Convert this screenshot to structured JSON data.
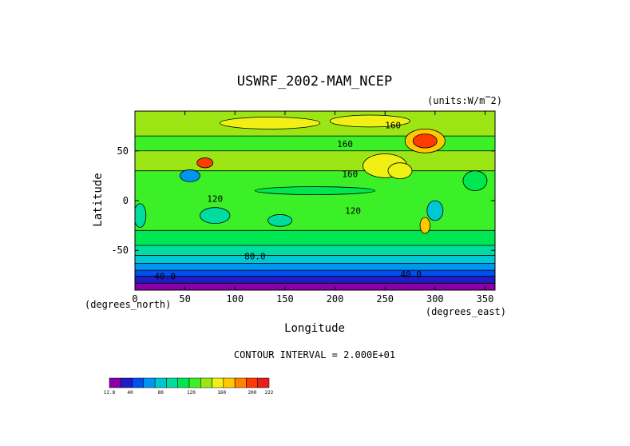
{
  "chart_data": {
    "type": "heatmap",
    "title": "USWRF_2002-MAM_NCEP",
    "units": "(units:W/m^2)",
    "xlabel": "Longitude",
    "ylabel": "Latitude",
    "x_unit_note": "(degrees_east)",
    "y_unit_note": "(degrees_north)",
    "xlim": [
      0,
      360
    ],
    "ylim": [
      -90,
      90
    ],
    "x_ticks": [
      0,
      50,
      100,
      150,
      200,
      250,
      300,
      350
    ],
    "y_ticks": [
      -50,
      0,
      50
    ],
    "contour_interval_text": "CONTOUR INTERVAL = 2.000E+01",
    "contour_labels": [
      {
        "text": "160",
        "lon": 258,
        "lat": 76
      },
      {
        "text": "160",
        "lon": 210,
        "lat": 57
      },
      {
        "text": "160",
        "lon": 215,
        "lat": 27
      },
      {
        "text": "120",
        "lon": 80,
        "lat": 2
      },
      {
        "text": "120",
        "lon": 218,
        "lat": -10
      },
      {
        "text": "80.0",
        "lon": 120,
        "lat": -56
      },
      {
        "text": "40.0",
        "lon": 30,
        "lat": -76
      },
      {
        "text": "40.0",
        "lon": 276,
        "lat": -74
      }
    ],
    "colorbar": {
      "tick_labels": [
        "12.8",
        "40",
        "80",
        "120",
        "160",
        "200",
        "222"
      ],
      "tick_values": [
        12.8,
        40,
        80,
        120,
        160,
        200,
        222
      ],
      "colors": [
        "#8a00a6",
        "#1e1ec8",
        "#0050f0",
        "#0096f0",
        "#00c8d2",
        "#00dca0",
        "#00e650",
        "#3cf028",
        "#9be614",
        "#f0f014",
        "#ffc800",
        "#ff8200",
        "#ff3c00",
        "#e61e1e"
      ]
    },
    "bands": [
      {
        "lat_from": -90,
        "lat_to": -83,
        "color": "#8a00a6",
        "value": 25
      },
      {
        "lat_from": -83,
        "lat_to": -76,
        "color": "#1e1ec8",
        "value": 35
      },
      {
        "lat_from": -76,
        "lat_to": -70,
        "color": "#0050f0",
        "value": 45
      },
      {
        "lat_from": -70,
        "lat_to": -63,
        "color": "#0096f0",
        "value": 55
      },
      {
        "lat_from": -63,
        "lat_to": -55,
        "color": "#00c8d2",
        "value": 70
      },
      {
        "lat_from": -55,
        "lat_to": -45,
        "color": "#00dca0",
        "value": 85
      },
      {
        "lat_from": -45,
        "lat_to": -30,
        "color": "#00e650",
        "value": 100
      },
      {
        "lat_from": -30,
        "lat_to": 30,
        "color": "#3cf028",
        "value": 115
      },
      {
        "lat_from": 30,
        "lat_to": 50,
        "color": "#9be614",
        "value": 130
      },
      {
        "lat_from": 50,
        "lat_to": 65,
        "color": "#3cf028",
        "value": 120
      },
      {
        "lat_from": 65,
        "lat_to": 90,
        "color": "#9be614",
        "value": 135
      }
    ],
    "patches": [
      {
        "lon": 250,
        "lat": 35,
        "rlon": 22,
        "rlat": 12,
        "color": "#f0f014",
        "value": 150
      },
      {
        "lon": 265,
        "lat": 30,
        "rlon": 12,
        "rlat": 8,
        "color": "#f0f014",
        "value": 150
      },
      {
        "lon": 235,
        "lat": 80,
        "rlon": 40,
        "rlat": 6,
        "color": "#f0f014",
        "value": 155
      },
      {
        "lon": 135,
        "lat": 78,
        "rlon": 50,
        "rlat": 6,
        "color": "#f0f014",
        "value": 155
      },
      {
        "lon": 290,
        "lat": 60,
        "rlon": 20,
        "rlat": 12,
        "color": "#ffc800",
        "value": 175
      },
      {
        "lon": 290,
        "lat": 60,
        "rlon": 12,
        "rlat": 7,
        "color": "#ff3c00",
        "value": 205
      },
      {
        "lon": 70,
        "lat": 38,
        "rlon": 8,
        "rlat": 5,
        "color": "#ff3c00",
        "value": 200
      },
      {
        "lon": 55,
        "lat": 25,
        "rlon": 10,
        "rlat": 6,
        "color": "#0096f0",
        "value": 60
      },
      {
        "lon": 80,
        "lat": -15,
        "rlon": 15,
        "rlat": 8,
        "color": "#00dca0",
        "value": 90
      },
      {
        "lon": 145,
        "lat": -20,
        "rlon": 12,
        "rlat": 6,
        "color": "#00dca0",
        "value": 95
      },
      {
        "lon": 5,
        "lat": -15,
        "rlon": 6,
        "rlat": 12,
        "color": "#00dca0",
        "value": 90
      },
      {
        "lon": 300,
        "lat": -10,
        "rlon": 8,
        "rlat": 10,
        "color": "#00c8d2",
        "value": 75
      },
      {
        "lon": 290,
        "lat": -25,
        "rlon": 5,
        "rlat": 8,
        "color": "#ffc800",
        "value": 170
      },
      {
        "lon": 180,
        "lat": 10,
        "rlon": 60,
        "rlat": 4,
        "color": "#00e650",
        "value": 100
      },
      {
        "lon": 340,
        "lat": 20,
        "rlon": 12,
        "rlat": 10,
        "color": "#00e650",
        "value": 105
      }
    ]
  }
}
